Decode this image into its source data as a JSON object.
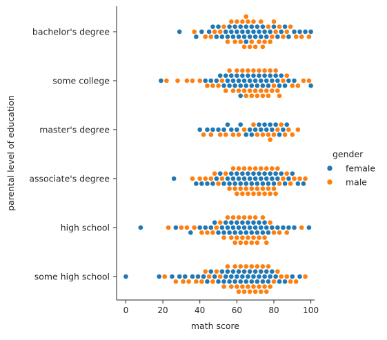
{
  "chart_data": {
    "type": "scatter",
    "subtype": "swarm",
    "title": "",
    "xlabel": "math score",
    "ylabel": "parental level of education",
    "xlim": [
      -5,
      102
    ],
    "xticks": [
      0,
      20,
      40,
      60,
      80,
      100
    ],
    "categories": [
      "bachelor's degree",
      "some college",
      "master's degree",
      "associate's degree",
      "high school",
      "some high school"
    ],
    "hue_title": "gender",
    "hue_levels": [
      "female",
      "male"
    ],
    "colors": {
      "female": "#1f77b4",
      "male": "#ff7f0e"
    },
    "legend": "right",
    "grid": false,
    "series": [
      {
        "category": "bachelor's degree",
        "female": [
          29,
          38,
          41,
          45,
          47,
          49,
          50,
          52,
          54,
          55,
          56,
          57,
          58,
          59,
          60,
          61,
          62,
          63,
          64,
          65,
          65,
          66,
          67,
          68,
          69,
          70,
          71,
          72,
          73,
          74,
          75,
          76,
          78,
          80,
          82,
          84,
          86,
          88,
          91,
          94,
          97,
          100
        ],
        "male": [
          37,
          43,
          46,
          48,
          51,
          53,
          55,
          57,
          59,
          60,
          62,
          63,
          64,
          65,
          66,
          67,
          68,
          69,
          70,
          72,
          73,
          74,
          75,
          77,
          78,
          79,
          80,
          81,
          83,
          85,
          87,
          89,
          92,
          95,
          99
        ]
      },
      {
        "category": "some college",
        "female": [
          19,
          43,
          46,
          49,
          51,
          53,
          54,
          55,
          56,
          57,
          58,
          59,
          60,
          61,
          62,
          62,
          63,
          64,
          65,
          66,
          67,
          68,
          69,
          70,
          71,
          72,
          73,
          74,
          75,
          76,
          77,
          78,
          79,
          81,
          82,
          83,
          84,
          86,
          88,
          91,
          100
        ],
        "male": [
          22,
          28,
          33,
          36,
          40,
          44,
          47,
          50,
          52,
          54,
          56,
          58,
          60,
          61,
          63,
          64,
          65,
          66,
          67,
          68,
          69,
          70,
          71,
          72,
          73,
          74,
          75,
          76,
          77,
          78,
          79,
          80,
          81,
          82,
          83,
          85,
          87,
          90,
          93,
          96,
          99
        ]
      },
      {
        "category": "master's degree",
        "female": [
          40,
          44,
          47,
          50,
          53,
          55,
          57,
          60,
          62,
          65,
          67,
          68,
          70,
          72,
          73,
          75,
          76,
          78,
          79,
          81,
          83,
          85,
          87
        ],
        "male": [
          42,
          46,
          51,
          54,
          58,
          61,
          64,
          69,
          71,
          74,
          77,
          78,
          80,
          82,
          84,
          86,
          88,
          90,
          93
        ]
      },
      {
        "category": "associate's degree",
        "female": [
          26,
          38,
          41,
          44,
          47,
          49,
          51,
          53,
          55,
          56,
          57,
          58,
          59,
          60,
          61,
          62,
          63,
          64,
          65,
          66,
          67,
          68,
          69,
          70,
          71,
          72,
          73,
          74,
          75,
          76,
          77,
          78,
          79,
          80,
          81,
          82,
          84,
          86,
          88,
          90,
          93,
          96
        ],
        "male": [
          36,
          40,
          43,
          46,
          48,
          50,
          52,
          54,
          56,
          58,
          59,
          60,
          61,
          62,
          63,
          64,
          65,
          66,
          67,
          68,
          69,
          70,
          71,
          72,
          73,
          74,
          75,
          76,
          77,
          78,
          79,
          80,
          81,
          82,
          83,
          85,
          87,
          89,
          91,
          94,
          97
        ]
      },
      {
        "category": "high school",
        "female": [
          8,
          27,
          35,
          40,
          43,
          46,
          48,
          50,
          52,
          53,
          54,
          55,
          56,
          57,
          58,
          59,
          60,
          61,
          62,
          63,
          64,
          65,
          66,
          67,
          68,
          69,
          70,
          71,
          72,
          73,
          74,
          75,
          76,
          77,
          79,
          82,
          85,
          88,
          91,
          99
        ],
        "male": [
          23,
          30,
          33,
          37,
          41,
          44,
          47,
          49,
          51,
          53,
          55,
          57,
          58,
          59,
          60,
          61,
          62,
          63,
          64,
          65,
          66,
          67,
          68,
          69,
          70,
          71,
          72,
          74,
          75,
          76,
          78,
          80,
          83,
          87,
          95
        ]
      },
      {
        "category": "some high school",
        "female": [
          0,
          18,
          25,
          29,
          32,
          36,
          39,
          42,
          44,
          46,
          48,
          50,
          52,
          53,
          54,
          55,
          56,
          57,
          58,
          59,
          60,
          61,
          62,
          63,
          64,
          65,
          66,
          67,
          68,
          69,
          70,
          71,
          72,
          73,
          74,
          75,
          76,
          77,
          78,
          79,
          81,
          83,
          86,
          90,
          94
        ],
        "male": [
          21,
          27,
          31,
          34,
          38,
          41,
          43,
          45,
          47,
          49,
          51,
          53,
          55,
          57,
          59,
          60,
          61,
          62,
          63,
          64,
          65,
          66,
          67,
          68,
          69,
          70,
          71,
          72,
          73,
          74,
          75,
          76,
          77,
          78,
          80,
          82,
          84,
          87,
          89,
          92,
          97
        ]
      }
    ]
  }
}
